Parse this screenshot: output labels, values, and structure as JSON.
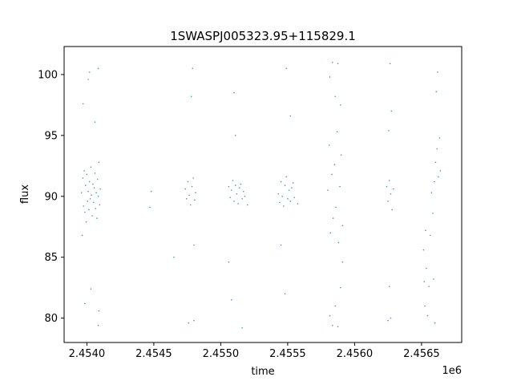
{
  "chart_data": {
    "type": "scatter",
    "title": "1SWASPJ005323.95+115829.1",
    "xlabel": "time",
    "ylabel": "flux",
    "x_offset_label": "1e6",
    "xlim": [
      2453830,
      2456800
    ],
    "ylim": [
      78,
      102.3
    ],
    "x_ticks": [
      2454000,
      2454500,
      2455000,
      2455500,
      2456000,
      2456500
    ],
    "x_tick_labels": [
      "2.4540",
      "2.4545",
      "2.4550",
      "2.4555",
      "2.4560",
      "2.4565"
    ],
    "y_ticks": [
      80,
      85,
      90,
      95,
      100
    ],
    "y_tick_labels": [
      "80",
      "85",
      "90",
      "95",
      "100"
    ],
    "grid": false,
    "marker_color": "#1f77b4",
    "series": [
      {
        "points": [
          [
            2453960,
            90.3
          ],
          [
            2453965,
            86.8
          ],
          [
            2453970,
            91.5
          ],
          [
            2453975,
            89.2
          ],
          [
            2453980,
            92.1
          ],
          [
            2453985,
            88.7
          ],
          [
            2453990,
            90.9
          ],
          [
            2453995,
            87.9
          ],
          [
            2454000,
            91.8
          ],
          [
            2454005,
            89.6
          ],
          [
            2454010,
            90.4
          ],
          [
            2454015,
            88.9
          ],
          [
            2454020,
            91.2
          ],
          [
            2454025,
            89.8
          ],
          [
            2454030,
            92.4
          ],
          [
            2454035,
            90.1
          ],
          [
            2454040,
            88.4
          ],
          [
            2454045,
            91.0
          ],
          [
            2454050,
            89.5
          ],
          [
            2454055,
            90.7
          ],
          [
            2454060,
            91.9
          ],
          [
            2454065,
            89.0
          ],
          [
            2454070,
            90.3
          ],
          [
            2454075,
            88.2
          ],
          [
            2454080,
            91.4
          ],
          [
            2454085,
            90.0
          ],
          [
            2454090,
            92.8
          ],
          [
            2454095,
            89.3
          ],
          [
            2454100,
            90.6
          ],
          [
            2453972,
            97.6
          ],
          [
            2454010,
            99.6
          ],
          [
            2454020,
            100.2
          ],
          [
            2454060,
            96.1
          ],
          [
            2454085,
            100.5
          ],
          [
            2453985,
            81.2
          ],
          [
            2454030,
            82.4
          ],
          [
            2454085,
            79.4
          ],
          [
            2454090,
            80.6
          ],
          [
            2454470,
            89.1
          ],
          [
            2454480,
            90.4
          ],
          [
            2454650,
            85.0
          ],
          [
            2454735,
            90.6
          ],
          [
            2454745,
            89.8
          ],
          [
            2454755,
            91.2
          ],
          [
            2454765,
            90.1
          ],
          [
            2454775,
            89.3
          ],
          [
            2454785,
            90.8
          ],
          [
            2454795,
            91.5
          ],
          [
            2454805,
            89.7
          ],
          [
            2454812,
            90.3
          ],
          [
            2454790,
            100.5
          ],
          [
            2454780,
            98.2
          ],
          [
            2454800,
            86.0
          ],
          [
            2454760,
            79.6
          ],
          [
            2454800,
            79.8
          ],
          [
            2455060,
            90.8
          ],
          [
            2455070,
            89.9
          ],
          [
            2455080,
            90.5
          ],
          [
            2455090,
            91.3
          ],
          [
            2455100,
            89.6
          ],
          [
            2455110,
            90.9
          ],
          [
            2455120,
            90.2
          ],
          [
            2455130,
            89.4
          ],
          [
            2455140,
            90.7
          ],
          [
            2455150,
            91.0
          ],
          [
            2455160,
            89.8
          ],
          [
            2455170,
            90.4
          ],
          [
            2455180,
            90.0
          ],
          [
            2455200,
            89.3
          ],
          [
            2455100,
            98.5
          ],
          [
            2455110,
            95.0
          ],
          [
            2455060,
            84.6
          ],
          [
            2455080,
            81.5
          ],
          [
            2455160,
            79.2
          ],
          [
            2455430,
            90.2
          ],
          [
            2455440,
            89.5
          ],
          [
            2455450,
            91.2
          ],
          [
            2455460,
            90.0
          ],
          [
            2455470,
            89.2
          ],
          [
            2455480,
            90.9
          ],
          [
            2455490,
            91.6
          ],
          [
            2455500,
            89.8
          ],
          [
            2455510,
            90.5
          ],
          [
            2455520,
            89.6
          ],
          [
            2455530,
            90.7
          ],
          [
            2455540,
            91.1
          ],
          [
            2455550,
            89.9
          ],
          [
            2455575,
            89.4
          ],
          [
            2455450,
            86.0
          ],
          [
            2455490,
            100.5
          ],
          [
            2455520,
            96.6
          ],
          [
            2455480,
            82.0
          ],
          [
            2455800,
            90.5
          ],
          [
            2455810,
            94.2
          ],
          [
            2455820,
            87.0
          ],
          [
            2455830,
            91.8
          ],
          [
            2455840,
            88.2
          ],
          [
            2455850,
            92.6
          ],
          [
            2455860,
            89.1
          ],
          [
            2455870,
            95.3
          ],
          [
            2455880,
            86.2
          ],
          [
            2455890,
            90.8
          ],
          [
            2455900,
            93.4
          ],
          [
            2455910,
            87.6
          ],
          [
            2455815,
            99.8
          ],
          [
            2455835,
            101.0
          ],
          [
            2455855,
            98.2
          ],
          [
            2455875,
            100.9
          ],
          [
            2455895,
            97.5
          ],
          [
            2455815,
            80.2
          ],
          [
            2455835,
            79.4
          ],
          [
            2455855,
            81.0
          ],
          [
            2455875,
            79.3
          ],
          [
            2455895,
            82.5
          ],
          [
            2455910,
            84.6
          ],
          [
            2456240,
            90.8
          ],
          [
            2456250,
            89.6
          ],
          [
            2456260,
            91.3
          ],
          [
            2456270,
            90.2
          ],
          [
            2456280,
            88.9
          ],
          [
            2456290,
            90.6
          ],
          [
            2456265,
            100.9
          ],
          [
            2456275,
            97.0
          ],
          [
            2456255,
            95.4
          ],
          [
            2456260,
            82.6
          ],
          [
            2456270,
            80.0
          ],
          [
            2456250,
            79.8
          ],
          [
            2456515,
            85.6
          ],
          [
            2456520,
            83.0
          ],
          [
            2456525,
            81.0
          ],
          [
            2456530,
            87.2
          ],
          [
            2456535,
            84.1
          ],
          [
            2456545,
            80.2
          ],
          [
            2456555,
            82.6
          ],
          [
            2456565,
            86.8
          ],
          [
            2456575,
            90.3
          ],
          [
            2456585,
            88.6
          ],
          [
            2456595,
            91.2
          ],
          [
            2456605,
            92.8
          ],
          [
            2456615,
            93.9
          ],
          [
            2456625,
            91.6
          ],
          [
            2456635,
            94.8
          ],
          [
            2456640,
            92.1
          ],
          [
            2456620,
            100.2
          ],
          [
            2456610,
            98.6
          ],
          [
            2456600,
            79.6
          ],
          [
            2456590,
            83.2
          ]
        ]
      }
    ]
  }
}
